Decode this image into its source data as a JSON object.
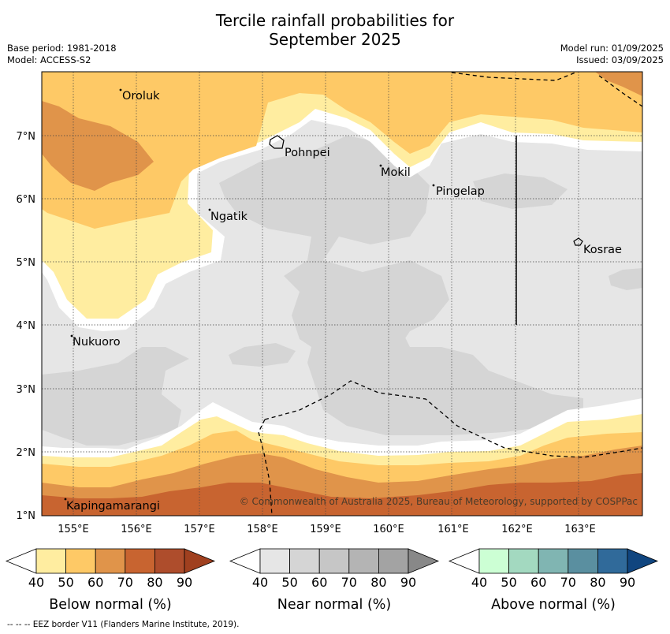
{
  "title_line1": "Tercile rainfall probabilities for",
  "title_line2": "September 2025",
  "base_period": "Base period: 1981-2018",
  "model": "Model: ACCESS-S2",
  "model_run": "Model run: 01/09/2025",
  "issued": "Issued: 03/09/2025",
  "places": {
    "oroluk": "Oroluk",
    "pohnpei": "Pohnpei",
    "mokil": "Mokil",
    "pingelap": "Pingelap",
    "ngatik": "Ngatik",
    "kosrae": "Kosrae",
    "nukuoro": "Nukuoro",
    "kapingamarangi": "Kapingamarangi"
  },
  "lat_labels": [
    "7°N",
    "6°N",
    "5°N",
    "4°N",
    "3°N",
    "2°N",
    "1°N"
  ],
  "lon_labels": [
    "155°E",
    "156°E",
    "157°E",
    "158°E",
    "159°E",
    "160°E",
    "161°E",
    "162°E",
    "163°E"
  ],
  "copyright": "© Commonwealth of Australia 2025, Bureau of Meteorology, supported by COSPPac",
  "colorbars": {
    "ticks": [
      "40",
      "50",
      "60",
      "70",
      "80",
      "90"
    ],
    "below": {
      "label": "Below normal (%)",
      "colors": [
        "#ffeda0",
        "#fec966",
        "#e0944a",
        "#c86430",
        "#ae4d2c",
        "#a0401f"
      ]
    },
    "near": {
      "label": "Near normal (%)",
      "colors": [
        "#e6e6e6",
        "#d5d5d5",
        "#c6c6c6",
        "#b4b4b4",
        "#a3a3a3",
        "#888888"
      ]
    },
    "above": {
      "label": "Above normal (%)",
      "colors": [
        "#ccffd4",
        "#a3d9c0",
        "#80b5b2",
        "#5a8fa0",
        "#306a9a",
        "#10457f"
      ]
    }
  },
  "footer": "--  --  -- EEZ border V11 (Flanders Marine Institute, 2019)."
}
